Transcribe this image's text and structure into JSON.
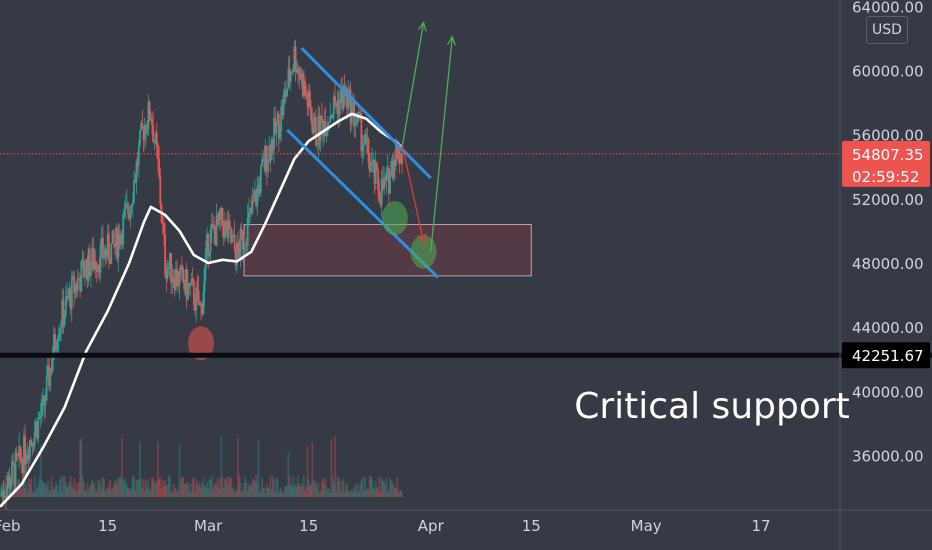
{
  "currency": "USD",
  "annotation_text": "Critical support",
  "colors": {
    "background": "#363a45",
    "axis_text": "#d1d4dc",
    "bull": "#26a69a",
    "bear": "#ef5350",
    "sma": "#ffffff",
    "channel": "#2e8fe0",
    "support_line": "#0b0c10",
    "projection_up": "#4caf50",
    "projection_down": "#e53935"
  },
  "chart_data": {
    "type": "candlestick",
    "x_tick_labels": [
      {
        "date": "2021-02-01",
        "label": "Feb"
      },
      {
        "date": "2021-02-15",
        "label": "15"
      },
      {
        "date": "2021-03-01",
        "label": "Mar"
      },
      {
        "date": "2021-03-15",
        "label": "15"
      },
      {
        "date": "2021-04-01",
        "label": "Apr"
      },
      {
        "date": "2021-04-15",
        "label": "15"
      },
      {
        "date": "2021-05-01",
        "label": "May"
      },
      {
        "date": "2021-05-17",
        "label": "17"
      }
    ],
    "y_tick_labels": [
      "36000.00",
      "40000.00",
      "44000.00",
      "48000.00",
      "52000.00",
      "56000.00",
      "60000.00",
      "64000.00"
    ],
    "y_ticks": [
      36000,
      40000,
      44000,
      48000,
      52000,
      56000,
      60000,
      64000
    ],
    "ylim": [
      32600,
      64400
    ],
    "xlim": [
      "2021-01-31",
      "2021-05-28"
    ],
    "current_price": 54807.35,
    "current_price_label": "54807.35",
    "countdown_label": "02:59:52",
    "support_price": 42251.67,
    "support_label": "42251.67",
    "price_path": [
      [
        "2021-01-31",
        33500
      ],
      [
        "2021-02-03",
        35800
      ],
      [
        "2021-02-06",
        38800
      ],
      [
        "2021-02-08",
        44000
      ],
      [
        "2021-02-10",
        46200
      ],
      [
        "2021-02-12",
        47800
      ],
      [
        "2021-02-14",
        48500
      ],
      [
        "2021-02-16",
        49000
      ],
      [
        "2021-02-18",
        51500
      ],
      [
        "2021-02-20",
        56500
      ],
      [
        "2021-02-21",
        57500
      ],
      [
        "2021-02-22",
        54000
      ],
      [
        "2021-02-23",
        48000
      ],
      [
        "2021-02-25",
        47000
      ],
      [
        "2021-02-27",
        46000
      ],
      [
        "2021-02-28",
        45000
      ],
      [
        "2021-03-01",
        49500
      ],
      [
        "2021-03-03",
        50500
      ],
      [
        "2021-03-05",
        48500
      ],
      [
        "2021-03-07",
        51000
      ],
      [
        "2021-03-09",
        54500
      ],
      [
        "2021-03-11",
        57000
      ],
      [
        "2021-03-13",
        61000
      ],
      [
        "2021-03-14",
        59500
      ],
      [
        "2021-03-16",
        56000
      ],
      [
        "2021-03-18",
        57500
      ],
      [
        "2021-03-20",
        58500
      ],
      [
        "2021-03-22",
        56500
      ],
      [
        "2021-03-24",
        53500
      ],
      [
        "2021-03-25",
        52500
      ],
      [
        "2021-03-26",
        53000
      ],
      [
        "2021-03-27",
        55000
      ],
      [
        "2021-03-28",
        54807
      ]
    ],
    "moving_average": [
      [
        "2021-01-31",
        32800
      ],
      [
        "2021-02-03",
        34200
      ],
      [
        "2021-02-06",
        36500
      ],
      [
        "2021-02-09",
        39000
      ],
      [
        "2021-02-12",
        42500
      ],
      [
        "2021-02-15",
        45000
      ],
      [
        "2021-02-18",
        48000
      ],
      [
        "2021-02-20",
        50500
      ],
      [
        "2021-02-21",
        51500
      ],
      [
        "2021-02-23",
        51000
      ],
      [
        "2021-02-25",
        50000
      ],
      [
        "2021-02-27",
        48500
      ],
      [
        "2021-03-01",
        48000
      ],
      [
        "2021-03-03",
        48200
      ],
      [
        "2021-03-05",
        48100
      ],
      [
        "2021-03-07",
        48700
      ],
      [
        "2021-03-09",
        50500
      ],
      [
        "2021-03-11",
        52500
      ],
      [
        "2021-03-13",
        54500
      ],
      [
        "2021-03-15",
        55600
      ],
      [
        "2021-03-17",
        56200
      ],
      [
        "2021-03-19",
        56800
      ],
      [
        "2021-03-21",
        57300
      ],
      [
        "2021-03-23",
        57000
      ],
      [
        "2021-03-25",
        56200
      ],
      [
        "2021-03-27",
        55600
      ],
      [
        "2021-03-28",
        55200
      ]
    ],
    "channel_upper": [
      [
        "2021-03-14",
        61400
      ],
      [
        "2021-04-01",
        53300
      ]
    ],
    "channel_lower": [
      [
        "2021-03-12",
        56300
      ],
      [
        "2021-04-02",
        47100
      ]
    ],
    "demand_zone": {
      "x0": "2021-03-06",
      "x1": "2021-04-15",
      "y0": 47200,
      "y1": 50400
    },
    "markers": [
      {
        "x": "2021-02-28",
        "y": 43000,
        "color": "#ef5350"
      },
      {
        "x": "2021-03-27",
        "y": 50800,
        "color": "#4caf50"
      },
      {
        "x": "2021-03-31",
        "y": 48700,
        "color": "#4caf50"
      }
    ],
    "projection_up": [
      [
        [
          "2021-03-28",
          55200
        ],
        [
          "2021-03-31",
          63000
        ]
      ],
      [
        [
          "2021-04-01",
          48700
        ],
        [
          "2021-04-04",
          62100
        ]
      ]
    ],
    "projection_down": [
      [
        "2021-03-28",
        55400
      ],
      [
        "2021-03-31",
        49300
      ]
    ]
  }
}
